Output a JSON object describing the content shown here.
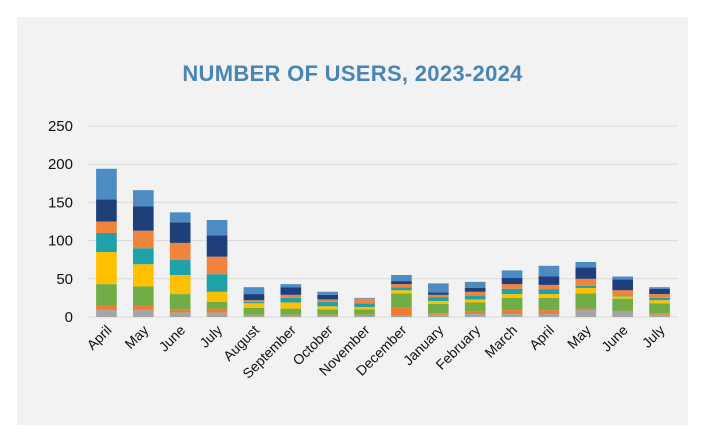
{
  "chart_data": {
    "type": "bar",
    "stacked": true,
    "title": "NUMBER OF USERS, 2023-2024",
    "xlabel": "",
    "ylabel": "",
    "ylim": [
      0,
      250
    ],
    "yticks": [
      0,
      50,
      100,
      150,
      200,
      250
    ],
    "grid": true,
    "legend": "none",
    "categories": [
      "April",
      "May",
      "June",
      "July",
      "August",
      "September",
      "October",
      "November",
      "December",
      "January",
      "February",
      "March",
      "April",
      "May",
      "June",
      "July"
    ],
    "series": [
      {
        "color": "#a5a5a5",
        "values": [
          9,
          9,
          6,
          6,
          2,
          2,
          2,
          2,
          2,
          3,
          4,
          4,
          4,
          9,
          7,
          3
        ]
      },
      {
        "color": "#ed7d31",
        "values": [
          6,
          6,
          4,
          5,
          1,
          1,
          1,
          1,
          11,
          2,
          3,
          5,
          5,
          2,
          1,
          2
        ]
      },
      {
        "color": "#70ad47",
        "values": [
          28,
          25,
          20,
          9,
          9,
          8,
          7,
          7,
          18,
          12,
          12,
          16,
          16,
          20,
          16,
          13
        ]
      },
      {
        "color": "#ffc000",
        "values": [
          42,
          29,
          25,
          13,
          6,
          8,
          4,
          3,
          4,
          4,
          4,
          5,
          5,
          7,
          3,
          4
        ]
      },
      {
        "color": "#1fa1a9",
        "values": [
          25,
          21,
          20,
          23,
          2,
          6,
          6,
          5,
          4,
          5,
          5,
          7,
          6,
          3,
          1,
          3
        ]
      },
      {
        "color": "#f0843c",
        "values": [
          15,
          23,
          22,
          23,
          2,
          4,
          3,
          6,
          4,
          3,
          5,
          6,
          6,
          9,
          7,
          5
        ]
      },
      {
        "color": "#1f3f7a",
        "values": [
          29,
          32,
          27,
          28,
          8,
          10,
          6,
          0,
          4,
          3,
          5,
          8,
          11,
          15,
          14,
          7
        ]
      },
      {
        "color": "#4d8bc3",
        "values": [
          40,
          21,
          13,
          20,
          9,
          4,
          4,
          1,
          8,
          12,
          8,
          10,
          14,
          7,
          4,
          2
        ]
      }
    ]
  }
}
